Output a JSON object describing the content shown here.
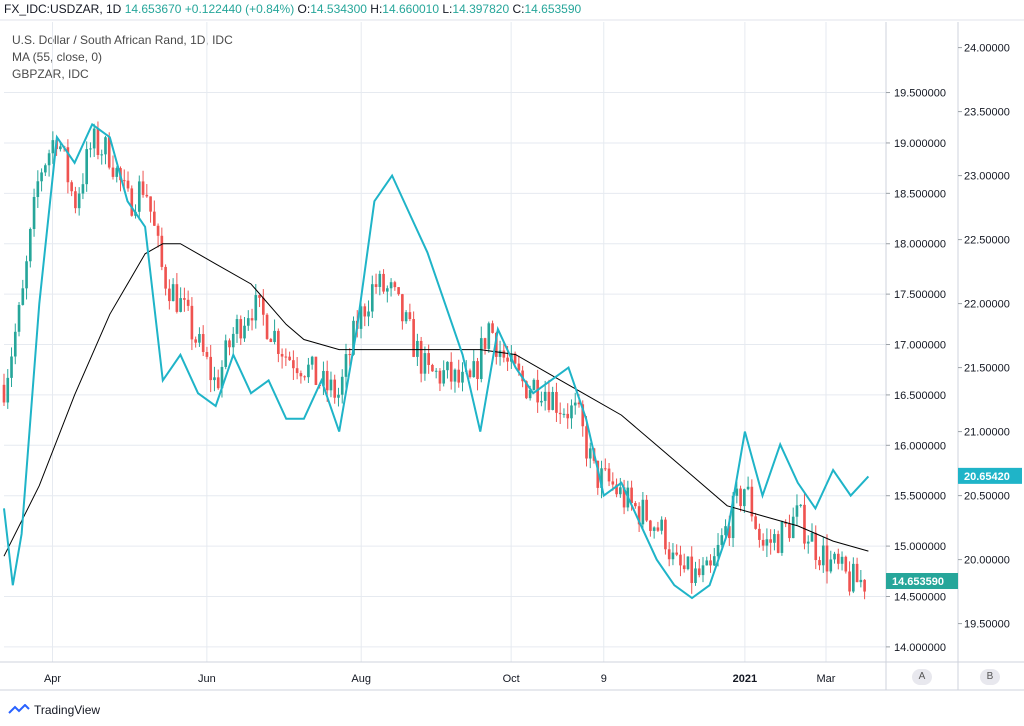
{
  "header": {
    "symbol": "FX_IDC:USDZAR, 1D",
    "last": "14.653670",
    "change": "+0.122440 (+0.84%)",
    "o_label": "O:",
    "o_value": "14.534300",
    "h_label": "H:",
    "h_value": "14.660010",
    "l_label": "L:",
    "l_value": "14.397820",
    "c_label": "C:",
    "c_value": "14.653590"
  },
  "legend": {
    "title": "U.S. Dollar / South African Rand, 1D, IDC",
    "ma": "MA (55, close, 0)",
    "compare": "GBPZAR, IDC"
  },
  "footer": {
    "brand": "TradingView"
  },
  "scale_buttons": {
    "a": "A",
    "b": "B"
  },
  "colors": {
    "up": "#26a69a",
    "down": "#ef5350",
    "ma": "#000000",
    "compare": "#1fb4c8",
    "grid": "#e6eaf0"
  },
  "chart_data": {
    "type": "candlestick",
    "title": "U.S. Dollar / South African Rand, 1D, IDC",
    "x_ticks": [
      "Apr",
      "Jun",
      "Aug",
      "Oct",
      "9",
      "2021",
      "Mar"
    ],
    "x_tick_pos": [
      0.055,
      0.23,
      0.405,
      0.575,
      0.68,
      0.84,
      1.0
    ],
    "y_left_ticks": [
      "14.000000",
      "14.500000",
      "15.000000",
      "15.500000",
      "16.000000",
      "16.500000",
      "17.000000",
      "17.500000",
      "18.000000",
      "18.500000",
      "19.000000",
      "19.500000"
    ],
    "y_left_range": [
      13.85,
      20.2
    ],
    "y_right_ticks": [
      "19.50000",
      "20.00000",
      "20.50000",
      "21.00000",
      "21.50000",
      "22.00000",
      "22.50000",
      "23.00000",
      "23.50000",
      "24.00000"
    ],
    "y_right_range": [
      19.2,
      24.2
    ],
    "last_price_label": "14.653590",
    "compare_last_label": "20.65420",
    "usdzar_close_keypoints": [
      [
        0.0,
        16.6
      ],
      [
        0.02,
        17.4
      ],
      [
        0.04,
        18.7
      ],
      [
        0.06,
        19.1
      ],
      [
        0.08,
        18.4
      ],
      [
        0.1,
        19.0
      ],
      [
        0.12,
        18.9
      ],
      [
        0.14,
        18.4
      ],
      [
        0.16,
        18.6
      ],
      [
        0.18,
        17.7
      ],
      [
        0.2,
        17.4
      ],
      [
        0.22,
        17.0
      ],
      [
        0.24,
        16.6
      ],
      [
        0.26,
        17.1
      ],
      [
        0.28,
        17.4
      ],
      [
        0.3,
        17.2
      ],
      [
        0.32,
        16.9
      ],
      [
        0.34,
        16.8
      ],
      [
        0.36,
        16.6
      ],
      [
        0.38,
        16.5
      ],
      [
        0.4,
        17.2
      ],
      [
        0.42,
        17.6
      ],
      [
        0.44,
        17.5
      ],
      [
        0.46,
        17.1
      ],
      [
        0.48,
        16.7
      ],
      [
        0.5,
        16.7
      ],
      [
        0.52,
        16.6
      ],
      [
        0.53,
        16.6
      ],
      [
        0.55,
        17.2
      ],
      [
        0.57,
        16.8
      ],
      [
        0.59,
        16.6
      ],
      [
        0.61,
        16.6
      ],
      [
        0.63,
        16.4
      ],
      [
        0.65,
        16.3
      ],
      [
        0.67,
        15.7
      ],
      [
        0.69,
        15.6
      ],
      [
        0.71,
        15.4
      ],
      [
        0.73,
        15.3
      ],
      [
        0.75,
        15.1
      ],
      [
        0.76,
        14.8
      ],
      [
        0.78,
        14.7
      ],
      [
        0.8,
        14.7
      ],
      [
        0.82,
        15.2
      ],
      [
        0.84,
        15.6
      ],
      [
        0.86,
        15.0
      ],
      [
        0.88,
        15.1
      ],
      [
        0.9,
        15.3
      ],
      [
        0.92,
        15.0
      ],
      [
        0.94,
        14.8
      ],
      [
        0.96,
        14.65
      ],
      [
        0.98,
        14.65
      ]
    ],
    "ma55_keypoints": [
      [
        0.0,
        14.9
      ],
      [
        0.04,
        15.6
      ],
      [
        0.08,
        16.5
      ],
      [
        0.12,
        17.3
      ],
      [
        0.16,
        17.9
      ],
      [
        0.18,
        18.0
      ],
      [
        0.2,
        18.0
      ],
      [
        0.24,
        17.8
      ],
      [
        0.28,
        17.6
      ],
      [
        0.32,
        17.2
      ],
      [
        0.34,
        17.05
      ],
      [
        0.38,
        16.95
      ],
      [
        0.42,
        16.95
      ],
      [
        0.46,
        16.95
      ],
      [
        0.5,
        16.95
      ],
      [
        0.54,
        16.95
      ],
      [
        0.58,
        16.9
      ],
      [
        0.62,
        16.7
      ],
      [
        0.66,
        16.5
      ],
      [
        0.7,
        16.3
      ],
      [
        0.74,
        16.0
      ],
      [
        0.78,
        15.7
      ],
      [
        0.82,
        15.4
      ],
      [
        0.86,
        15.3
      ],
      [
        0.9,
        15.2
      ],
      [
        0.94,
        15.05
      ],
      [
        0.98,
        14.95
      ]
    ],
    "gbpzar_keypoints": [
      [
        0.0,
        20.4
      ],
      [
        0.01,
        19.8
      ],
      [
        0.02,
        20.2
      ],
      [
        0.04,
        22.0
      ],
      [
        0.06,
        23.3
      ],
      [
        0.08,
        23.1
      ],
      [
        0.1,
        23.4
      ],
      [
        0.12,
        23.3
      ],
      [
        0.14,
        22.8
      ],
      [
        0.16,
        22.6
      ],
      [
        0.18,
        21.4
      ],
      [
        0.2,
        21.6
      ],
      [
        0.22,
        21.3
      ],
      [
        0.24,
        21.2
      ],
      [
        0.26,
        21.6
      ],
      [
        0.28,
        21.3
      ],
      [
        0.3,
        21.4
      ],
      [
        0.32,
        21.1
      ],
      [
        0.34,
        21.1
      ],
      [
        0.36,
        21.4
      ],
      [
        0.38,
        21.0
      ],
      [
        0.4,
        21.8
      ],
      [
        0.42,
        22.8
      ],
      [
        0.44,
        23.0
      ],
      [
        0.46,
        22.7
      ],
      [
        0.48,
        22.4
      ],
      [
        0.5,
        22.0
      ],
      [
        0.52,
        21.6
      ],
      [
        0.54,
        21.0
      ],
      [
        0.56,
        21.8
      ],
      [
        0.58,
        21.5
      ],
      [
        0.6,
        21.3
      ],
      [
        0.62,
        21.4
      ],
      [
        0.64,
        21.5
      ],
      [
        0.66,
        21.1
      ],
      [
        0.68,
        20.5
      ],
      [
        0.7,
        20.6
      ],
      [
        0.72,
        20.3
      ],
      [
        0.74,
        20.0
      ],
      [
        0.76,
        19.8
      ],
      [
        0.78,
        19.7
      ],
      [
        0.8,
        19.8
      ],
      [
        0.82,
        20.2
      ],
      [
        0.84,
        21.0
      ],
      [
        0.86,
        20.5
      ],
      [
        0.88,
        20.9
      ],
      [
        0.9,
        20.6
      ],
      [
        0.92,
        20.4
      ],
      [
        0.94,
        20.7
      ],
      [
        0.96,
        20.5
      ],
      [
        0.98,
        20.65
      ]
    ]
  }
}
